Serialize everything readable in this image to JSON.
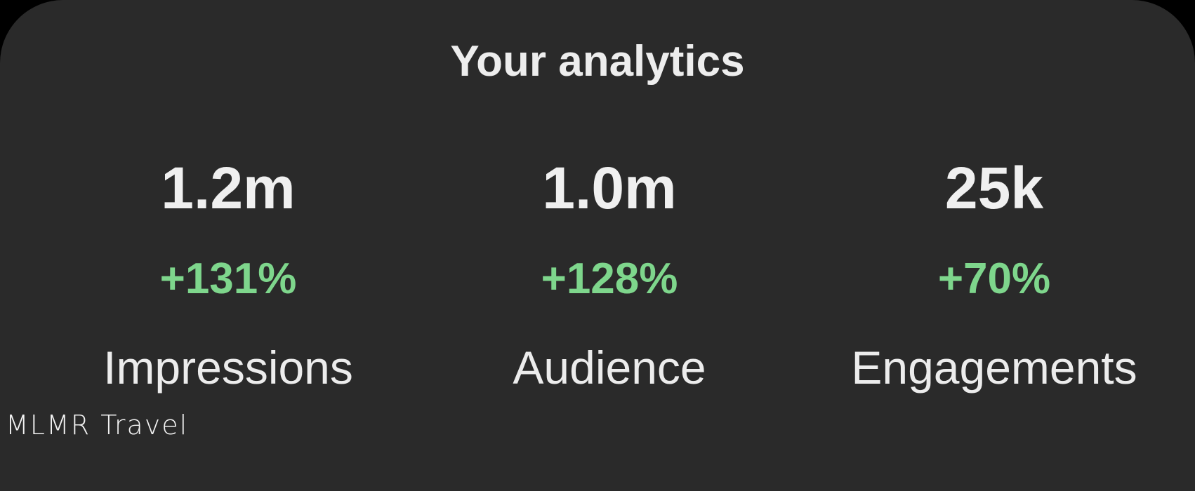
{
  "title": "Your analytics",
  "colors": {
    "background": "#2a2a2a",
    "positive": "#7ed68c",
    "text": "#ededed"
  },
  "metrics": [
    {
      "value": "1.2m",
      "change": "+131%",
      "label": "Impressions"
    },
    {
      "value": "1.0m",
      "change": "+128%",
      "label": "Audience"
    },
    {
      "value": "25k",
      "change": "+70%",
      "label": "Engagements"
    }
  ],
  "watermark": "MLMR Travel"
}
